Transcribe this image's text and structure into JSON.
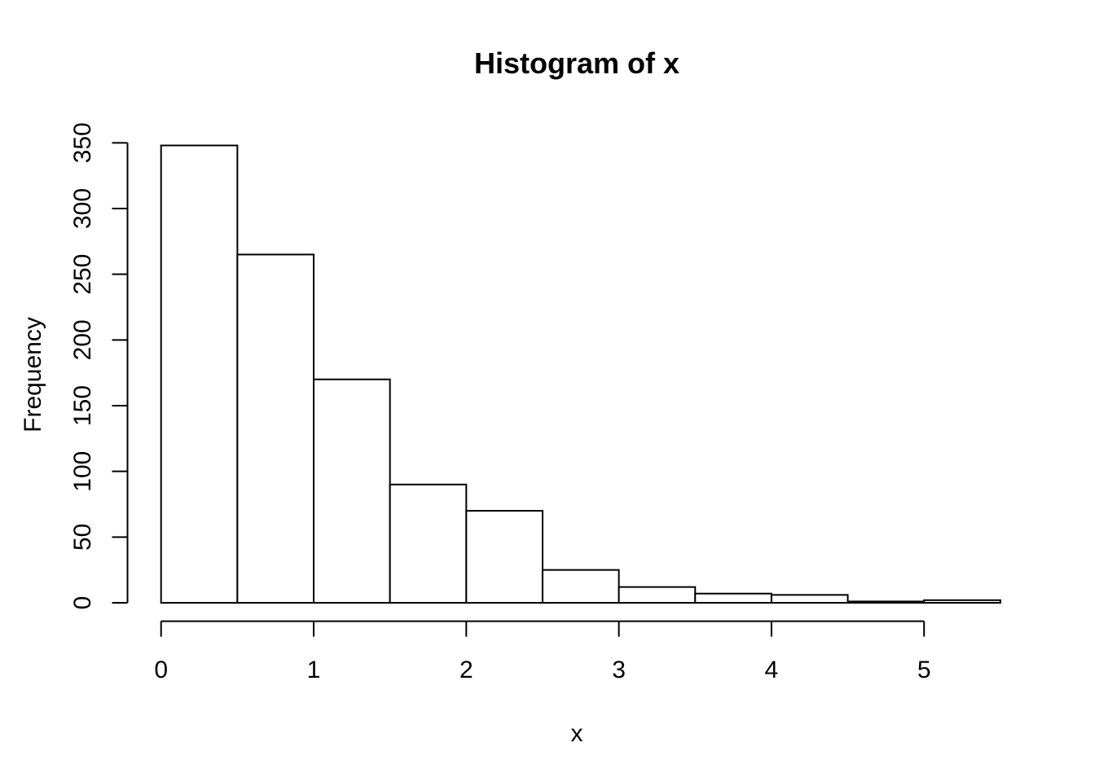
{
  "window": {
    "background": "#ffffff"
  },
  "chart_data": {
    "type": "bar",
    "subtype": "histogram",
    "title": "Histogram of x",
    "xlabel": "x",
    "ylabel": "Frequency",
    "bin_edges": [
      0,
      0.5,
      1.0,
      1.5,
      2.0,
      2.5,
      3.0,
      3.5,
      4.0,
      4.5,
      5.0,
      5.5
    ],
    "values": [
      348,
      265,
      170,
      90,
      70,
      25,
      12,
      7,
      6,
      1,
      2
    ],
    "x_ticks": [
      "0",
      "1",
      "2",
      "3",
      "4",
      "5"
    ],
    "x_tick_values": [
      0,
      1,
      2,
      3,
      4,
      5
    ],
    "y_ticks": [
      "0",
      "50",
      "100",
      "150",
      "200",
      "250",
      "300",
      "350"
    ],
    "y_tick_values": [
      0,
      50,
      100,
      150,
      200,
      250,
      300,
      350
    ],
    "xlim": [
      0,
      5.5
    ],
    "ylim": [
      0,
      350
    ],
    "grid": false,
    "legend_position": "none",
    "bar_fill": "#ffffff",
    "bar_stroke": "#000000",
    "axis_color": "#000000",
    "text_color": "#000000"
  }
}
